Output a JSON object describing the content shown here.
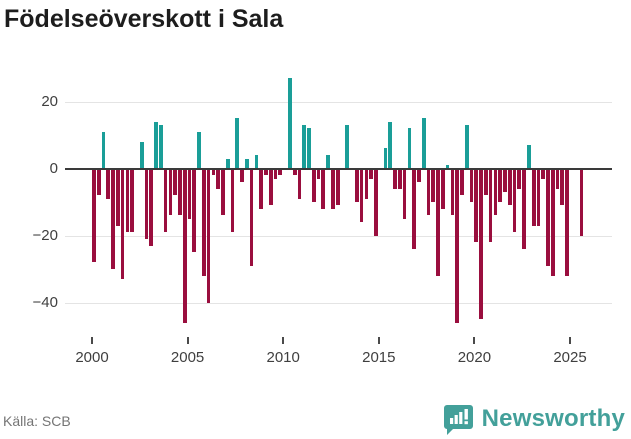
{
  "title": "Födelseöverskott i Sala",
  "source": "Källa: SCB",
  "brand": {
    "name": "Newsworthy",
    "icon": "newsworthy-bar-chart-bubble-icon"
  },
  "colors": {
    "positive_bar": "#1a9e98",
    "negative_bar": "#9a0e3e",
    "zero_line": "#3a3a3a",
    "gridline": "#e4e4e4",
    "title_text": "#1d1d1d",
    "axis_text": "#3f3f3f",
    "source_text": "#757575",
    "brand_teal": "#43a09a"
  },
  "chart_data": {
    "type": "bar",
    "title": "Födelseöverskott i Sala",
    "frequency": "quarterly",
    "start": "2000-Q1",
    "end": "2025-Q3",
    "grid": "horizontal",
    "ylim": [
      -48,
      29
    ],
    "y_ticks": [
      {
        "v": 20,
        "label": "20"
      },
      {
        "v": 0,
        "label": "0"
      },
      {
        "v": -20,
        "label": "−20"
      },
      {
        "v": -40,
        "label": "−40"
      }
    ],
    "x_ticks": [
      {
        "year": 2000,
        "label": "2000"
      },
      {
        "year": 2005,
        "label": "2005"
      },
      {
        "year": 2010,
        "label": "2010"
      },
      {
        "year": 2015,
        "label": "2015"
      },
      {
        "year": 2020,
        "label": "2020"
      },
      {
        "year": 2025,
        "label": "2025"
      }
    ],
    "values": [
      -28,
      -8,
      11,
      -9,
      -30,
      -17,
      -33,
      -19,
      -19,
      0,
      8,
      -21,
      -23,
      14,
      13,
      -19,
      -14,
      -8,
      -14,
      -46,
      -15,
      -25,
      11,
      -32,
      -40,
      -2,
      -6,
      -14,
      3,
      -19,
      15,
      -4,
      3,
      -29,
      4,
      -12,
      -2,
      -11,
      -3,
      -2,
      0,
      27,
      -2,
      -9,
      13,
      12,
      -10,
      -3,
      -12,
      4,
      -12,
      -11,
      0,
      13,
      0,
      -10,
      -16,
      -9,
      -3,
      -20,
      0,
      6,
      14,
      -6,
      -6,
      -15,
      12,
      -24,
      -4,
      15,
      -14,
      -10,
      -32,
      -12,
      1,
      -14,
      -46,
      -8,
      13,
      -10,
      -22,
      -45,
      -8,
      -22,
      -14,
      -10,
      -7,
      -11,
      -19,
      -6,
      -24,
      7,
      -17,
      -17,
      -3,
      -29,
      -32,
      -6,
      -11,
      -32,
      0,
      0,
      -20
    ]
  }
}
